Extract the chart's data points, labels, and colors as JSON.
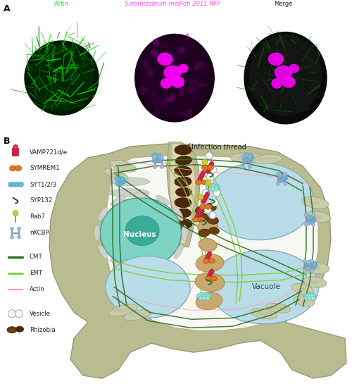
{
  "panel_A_label": "A",
  "panel_B_label": "B",
  "panel_titles": [
    "Actin",
    "Sinorhizobium meliloti 2011 RFP",
    "Merge"
  ],
  "panel_title_colors": [
    "#00ff00",
    "#ff44ff",
    "#222222"
  ],
  "panel_title_italic": [
    false,
    true,
    false
  ],
  "infection_thread_label": "Infection thread",
  "nucleus_label": "Nucleus",
  "vacuole_label": "Vacuole",
  "cell_wall_color": "#b8bc8e",
  "cell_interior_color": "#f8f8f3",
  "nucleus_fill": "#7dd4c4",
  "nucleus_inner_fill": "#3aaa99",
  "vacuole_fill": "#b8dde8",
  "er_color": "#d0d0cc",
  "infection_thread_wall": "#b8bc8e",
  "infection_thread_inner": "#e0d5b0",
  "rhizobia_dark": "#4a2808",
  "rhizobia_it": "#5a3010",
  "symbiosome_tan": "#c8a870",
  "cmt_color": "#2a7020",
  "emt_color": "#7acc30",
  "actin_color": "#ff99bb",
  "vamp_color": "#cc2244",
  "symrem_color": "#dd7722",
  "syt_color": "#66bbdd",
  "syp_color": "#226633",
  "rab7_color": "#cccc33",
  "nkcbp_color": "#8899bb",
  "vesicle_fill": "#f8f8f8",
  "vesicle_edge": "#999999",
  "plastid_color": "#c8cca8",
  "plastid_edge": "#a0a488"
}
